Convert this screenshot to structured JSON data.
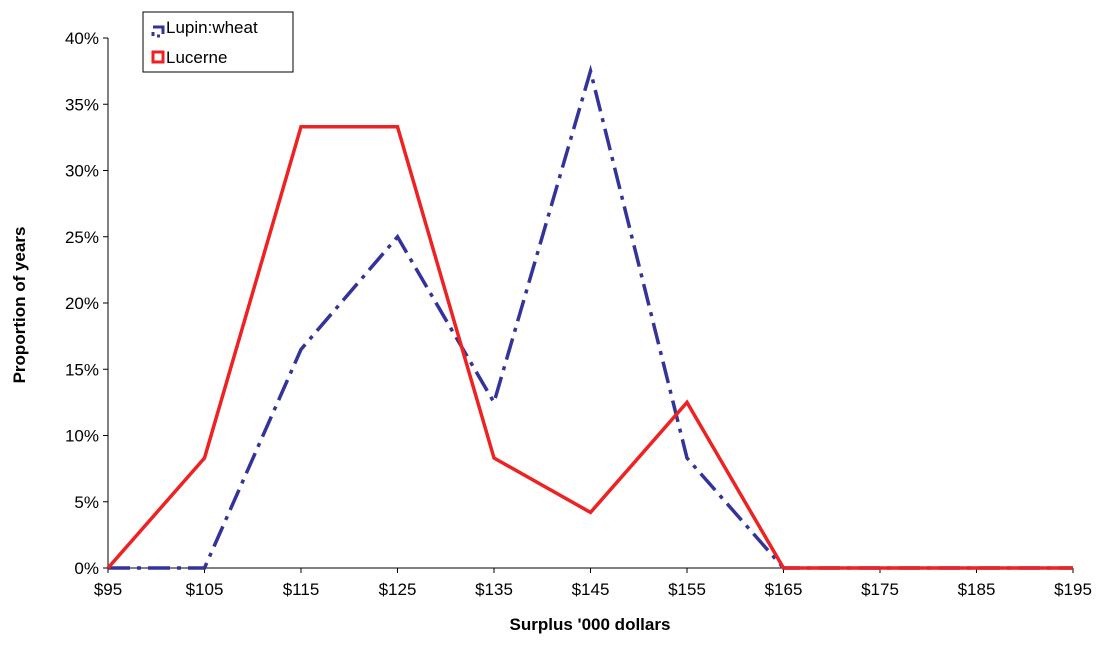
{
  "chart_data": {
    "type": "line",
    "title": "",
    "xlabel": "Surplus '000 dollars",
    "ylabel": "Proportion of years",
    "categories": [
      "$95",
      "$105",
      "$115",
      "$125",
      "$135",
      "$145",
      "$155",
      "$165",
      "$175",
      "$185",
      "$195"
    ],
    "x_values": [
      95,
      105,
      115,
      125,
      135,
      145,
      155,
      165,
      175,
      185,
      195
    ],
    "yticks": [
      "0%",
      "5%",
      "10%",
      "15%",
      "20%",
      "25%",
      "30%",
      "35%",
      "40%"
    ],
    "ylim": [
      0,
      40
    ],
    "grid": false,
    "legend_position": "top-left",
    "series": [
      {
        "name": "Lupin:wheat",
        "color": "#333399",
        "style": "dash-dot",
        "values": [
          0,
          0,
          16.5,
          25,
          12.5,
          37.5,
          8.3,
          0,
          0,
          0,
          0
        ]
      },
      {
        "name": "Lucerne",
        "color": "#ee2222",
        "style": "solid",
        "values": [
          0,
          8.3,
          33.3,
          33.3,
          8.3,
          4.2,
          12.5,
          0,
          0,
          0,
          0
        ]
      }
    ]
  }
}
